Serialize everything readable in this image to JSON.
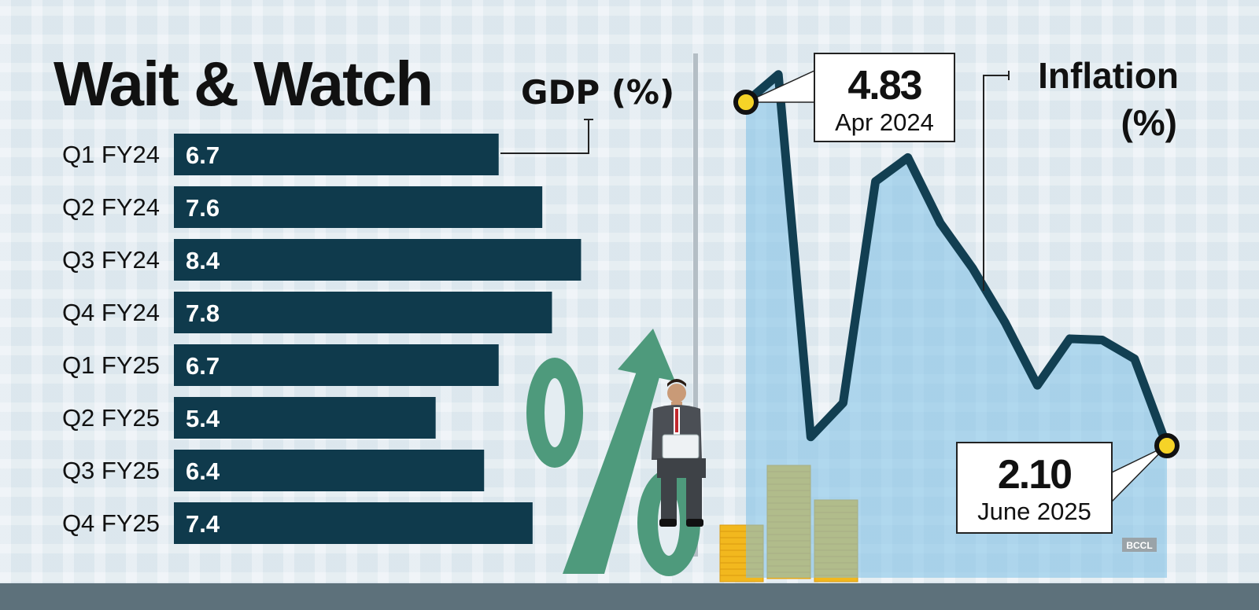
{
  "chart_data": [
    {
      "type": "bar",
      "title": "Wait & Watch",
      "series_label": "GDP (%)",
      "orientation": "horizontal",
      "categories": [
        "Q1 FY24",
        "Q2 FY24",
        "Q3 FY24",
        "Q4 FY24",
        "Q1 FY25",
        "Q2 FY25",
        "Q3 FY25",
        "Q4 FY25"
      ],
      "values": [
        6.7,
        7.6,
        8.4,
        7.8,
        6.7,
        5.4,
        6.4,
        7.4
      ],
      "value_labels": [
        "6.7",
        "7.6",
        "8.4",
        "7.8",
        "6.7",
        "5.4",
        "6.4",
        "7.4"
      ],
      "xlim": [
        0,
        9
      ],
      "color": "#0f3a4c"
    },
    {
      "type": "area",
      "title": "Inflation",
      "title_unit": "(%)",
      "x": [
        0,
        1,
        2,
        3,
        4,
        5,
        6,
        7,
        8,
        9,
        10,
        11,
        12,
        13
      ],
      "values": [
        4.83,
        5.05,
        2.17,
        2.44,
        4.2,
        4.39,
        3.87,
        3.51,
        3.08,
        2.58,
        2.95,
        2.94,
        2.79,
        2.1
      ],
      "ylim": [
        1.6,
        5.4
      ],
      "annotations": [
        {
          "index": 0,
          "value": "4.83",
          "label": "Apr 2024"
        },
        {
          "index": 13,
          "value": "2.10",
          "label": "June 2025"
        }
      ],
      "line_color": "#123f52",
      "fill_color": "#7cc0e6",
      "marker_color": "#f5d327"
    }
  ],
  "watermark": "BCCL"
}
